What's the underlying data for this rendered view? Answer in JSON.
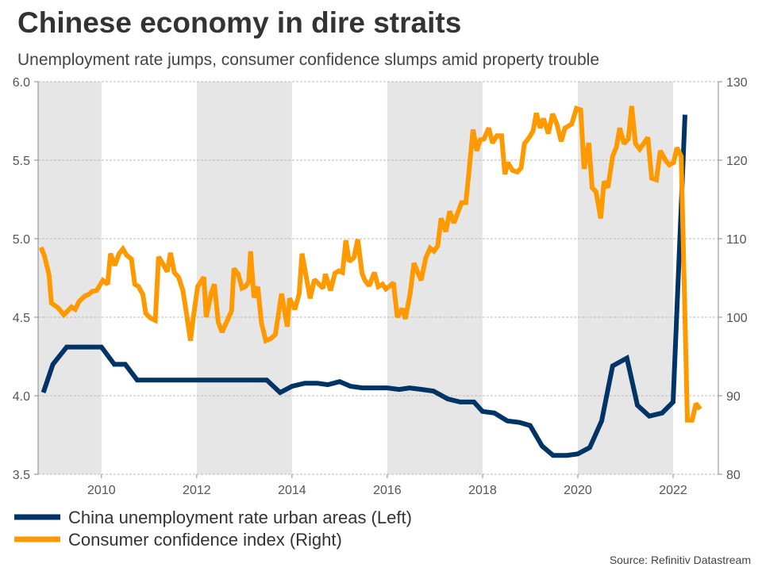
{
  "chart_data": {
    "type": "line",
    "title": "Chinese economy in dire straits",
    "subtitle": "Unemployment rate jumps, consumer confidence slumps amid property trouble",
    "source": "Source: Refinitiv Datastream",
    "xlim": [
      2008.67,
      2022.95
    ],
    "x_ticks": [
      2010,
      2012,
      2014,
      2016,
      2018,
      2020,
      2022
    ],
    "y_left": {
      "lim": [
        3.5,
        6.0
      ],
      "ticks": [
        "3.5",
        "4.0",
        "4.5",
        "5.0",
        "5.5",
        "6.0"
      ]
    },
    "y_right": {
      "lim": [
        80,
        130
      ],
      "ticks": [
        "80",
        "90",
        "100",
        "110",
        "120",
        "130"
      ]
    },
    "grid": true,
    "shaded_periods": [
      [
        2008.67,
        2010
      ],
      [
        2012,
        2014
      ],
      [
        2016,
        2018
      ],
      [
        2020,
        2022
      ]
    ],
    "legend_position": "bottom-left",
    "series": [
      {
        "name": "China unemployment rate urban areas (Left)",
        "axis": "left",
        "color": "#003366",
        "points": [
          [
            2008.78,
            4.02
          ],
          [
            2008.98,
            4.2
          ],
          [
            2009.27,
            4.31
          ],
          [
            2010.0,
            4.31
          ],
          [
            2010.27,
            4.2
          ],
          [
            2010.5,
            4.2
          ],
          [
            2010.75,
            4.1
          ],
          [
            2013.47,
            4.1
          ],
          [
            2013.75,
            4.02
          ],
          [
            2014.0,
            4.06
          ],
          [
            2014.27,
            4.08
          ],
          [
            2014.53,
            4.08
          ],
          [
            2014.75,
            4.07
          ],
          [
            2015.0,
            4.09
          ],
          [
            2015.23,
            4.06
          ],
          [
            2015.48,
            4.05
          ],
          [
            2015.72,
            4.05
          ],
          [
            2016.0,
            4.05
          ],
          [
            2016.25,
            4.04
          ],
          [
            2016.47,
            4.05
          ],
          [
            2016.73,
            4.04
          ],
          [
            2016.97,
            4.03
          ],
          [
            2017.27,
            3.98
          ],
          [
            2017.53,
            3.96
          ],
          [
            2017.82,
            3.96
          ],
          [
            2018.0,
            3.9
          ],
          [
            2018.25,
            3.89
          ],
          [
            2018.52,
            3.84
          ],
          [
            2018.78,
            3.83
          ],
          [
            2019.0,
            3.81
          ],
          [
            2019.25,
            3.68
          ],
          [
            2019.48,
            3.62
          ],
          [
            2019.77,
            3.62
          ],
          [
            2020.0,
            3.63
          ],
          [
            2020.25,
            3.67
          ],
          [
            2020.5,
            3.84
          ],
          [
            2020.73,
            4.19
          ],
          [
            2021.03,
            4.24
          ],
          [
            2021.25,
            3.94
          ],
          [
            2021.5,
            3.87
          ],
          [
            2021.77,
            3.89
          ],
          [
            2022.0,
            3.96
          ],
          [
            2022.25,
            5.79
          ]
        ]
      },
      {
        "name": "Consumer confidence index (Right)",
        "axis": "right",
        "color": "#FF9900",
        "points": [
          [
            2008.73,
            108.9
          ],
          [
            2008.8,
            107.9
          ],
          [
            2008.9,
            105.4
          ],
          [
            2008.95,
            101.8
          ],
          [
            2009.09,
            101.2
          ],
          [
            2009.21,
            100.3
          ],
          [
            2009.37,
            101.3
          ],
          [
            2009.45,
            101.0
          ],
          [
            2009.53,
            102.0
          ],
          [
            2009.65,
            102.7
          ],
          [
            2009.73,
            102.9
          ],
          [
            2009.81,
            103.3
          ],
          [
            2009.9,
            103.4
          ],
          [
            2010.03,
            104.7
          ],
          [
            2010.13,
            104.2
          ],
          [
            2010.19,
            108.1
          ],
          [
            2010.28,
            106.6
          ],
          [
            2010.37,
            108.1
          ],
          [
            2010.45,
            108.7
          ],
          [
            2010.53,
            107.9
          ],
          [
            2010.63,
            107.4
          ],
          [
            2010.7,
            104.2
          ],
          [
            2010.78,
            103.9
          ],
          [
            2010.87,
            102.9
          ],
          [
            2010.93,
            100.5
          ],
          [
            2011.03,
            99.9
          ],
          [
            2011.13,
            99.6
          ],
          [
            2011.2,
            107.7
          ],
          [
            2011.28,
            106.9
          ],
          [
            2011.38,
            105.8
          ],
          [
            2011.45,
            108.2
          ],
          [
            2011.53,
            105.7
          ],
          [
            2011.62,
            105.1
          ],
          [
            2011.71,
            103.4
          ],
          [
            2011.78,
            100.7
          ],
          [
            2011.87,
            97.0
          ],
          [
            2011.93,
            100.0
          ],
          [
            2012.02,
            103.9
          ],
          [
            2012.15,
            105.1
          ],
          [
            2012.2,
            100.0
          ],
          [
            2012.3,
            103.0
          ],
          [
            2012.37,
            104.2
          ],
          [
            2012.45,
            99.4
          ],
          [
            2012.53,
            98.1
          ],
          [
            2012.65,
            99.7
          ],
          [
            2012.73,
            100.8
          ],
          [
            2012.78,
            106.2
          ],
          [
            2012.87,
            105.5
          ],
          [
            2012.95,
            103.7
          ],
          [
            2013.02,
            103.9
          ],
          [
            2013.09,
            104.5
          ],
          [
            2013.13,
            108.4
          ],
          [
            2013.2,
            102.5
          ],
          [
            2013.28,
            103.9
          ],
          [
            2013.36,
            99.2
          ],
          [
            2013.45,
            97.0
          ],
          [
            2013.56,
            97.3
          ],
          [
            2013.65,
            97.8
          ],
          [
            2013.78,
            103.0
          ],
          [
            2013.9,
            98.8
          ],
          [
            2013.95,
            102.4
          ],
          [
            2014.06,
            101.0
          ],
          [
            2014.15,
            103.0
          ],
          [
            2014.21,
            108.1
          ],
          [
            2014.38,
            102.4
          ],
          [
            2014.47,
            104.8
          ],
          [
            2014.65,
            103.7
          ],
          [
            2014.7,
            105.5
          ],
          [
            2014.81,
            103.4
          ],
          [
            2014.9,
            105.6
          ],
          [
            2014.98,
            105.9
          ],
          [
            2015.06,
            105.7
          ],
          [
            2015.13,
            109.8
          ],
          [
            2015.2,
            107.1
          ],
          [
            2015.3,
            107.6
          ],
          [
            2015.38,
            109.9
          ],
          [
            2015.47,
            105.6
          ],
          [
            2015.53,
            104.7
          ],
          [
            2015.62,
            104.0
          ],
          [
            2015.73,
            105.7
          ],
          [
            2015.81,
            103.9
          ],
          [
            2015.9,
            104.2
          ],
          [
            2015.97,
            103.6
          ],
          [
            2016.06,
            104.0
          ],
          [
            2016.13,
            104.4
          ],
          [
            2016.21,
            100.0
          ],
          [
            2016.31,
            101.1
          ],
          [
            2016.38,
            99.8
          ],
          [
            2016.48,
            103.0
          ],
          [
            2016.56,
            106.9
          ],
          [
            2016.71,
            104.7
          ],
          [
            2016.81,
            107.6
          ],
          [
            2016.9,
            108.8
          ],
          [
            2016.98,
            108.4
          ],
          [
            2017.06,
            109.1
          ],
          [
            2017.13,
            112.6
          ],
          [
            2017.23,
            110.9
          ],
          [
            2017.31,
            113.5
          ],
          [
            2017.4,
            112.0
          ],
          [
            2017.56,
            114.6
          ],
          [
            2017.65,
            114.6
          ],
          [
            2017.71,
            118.2
          ],
          [
            2017.8,
            123.9
          ],
          [
            2017.88,
            121.2
          ],
          [
            2017.95,
            122.6
          ],
          [
            2018.03,
            122.7
          ],
          [
            2018.13,
            124.1
          ],
          [
            2018.21,
            122.2
          ],
          [
            2018.3,
            123.1
          ],
          [
            2018.4,
            123.1
          ],
          [
            2018.47,
            118.2
          ],
          [
            2018.53,
            119.7
          ],
          [
            2018.63,
            118.7
          ],
          [
            2018.73,
            118.5
          ],
          [
            2018.81,
            119.0
          ],
          [
            2018.88,
            122.1
          ],
          [
            2018.98,
            122.9
          ],
          [
            2019.06,
            123.7
          ],
          [
            2019.13,
            126.0
          ],
          [
            2019.21,
            124.1
          ],
          [
            2019.28,
            125.3
          ],
          [
            2019.38,
            123.4
          ],
          [
            2019.47,
            125.9
          ],
          [
            2019.56,
            124.6
          ],
          [
            2019.65,
            122.4
          ],
          [
            2019.73,
            124.1
          ],
          [
            2019.87,
            124.6
          ],
          [
            2019.97,
            126.6
          ],
          [
            2020.06,
            126.4
          ],
          [
            2020.13,
            118.9
          ],
          [
            2020.23,
            122.2
          ],
          [
            2020.3,
            116.5
          ],
          [
            2020.38,
            116.0
          ],
          [
            2020.48,
            112.6
          ],
          [
            2020.55,
            117.3
          ],
          [
            2020.63,
            116.5
          ],
          [
            2020.73,
            120.5
          ],
          [
            2020.81,
            121.7
          ],
          [
            2020.88,
            124.1
          ],
          [
            2020.97,
            122.1
          ],
          [
            2021.06,
            122.7
          ],
          [
            2021.13,
            126.9
          ],
          [
            2021.21,
            122.1
          ],
          [
            2021.3,
            121.4
          ],
          [
            2021.47,
            122.9
          ],
          [
            2021.55,
            117.7
          ],
          [
            2021.65,
            117.5
          ],
          [
            2021.73,
            121.2
          ],
          [
            2021.84,
            120.0
          ],
          [
            2021.92,
            119.4
          ],
          [
            2022.01,
            119.7
          ],
          [
            2022.08,
            121.6
          ],
          [
            2022.17,
            120.5
          ],
          [
            2022.3,
            86.9
          ],
          [
            2022.4,
            86.9
          ],
          [
            2022.48,
            89.0
          ],
          [
            2022.57,
            88.3
          ]
        ]
      }
    ]
  },
  "colors": {
    "shade": "#E6E6E6",
    "grid": "#BBBBBB",
    "axis": "#888888"
  }
}
